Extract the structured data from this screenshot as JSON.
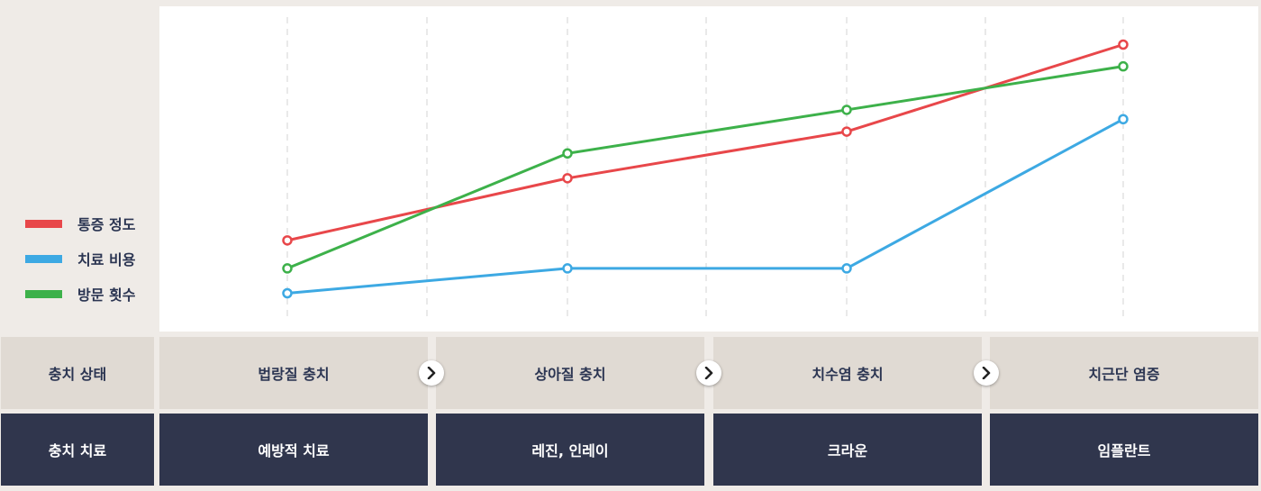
{
  "legend": [
    {
      "label": "통증 정도",
      "color": "#e8474a"
    },
    {
      "label": "치료 비용",
      "color": "#3da9e3"
    },
    {
      "label": "방문 횟수",
      "color": "#3db14a"
    }
  ],
  "table": {
    "stage_header": "충치 상태",
    "treatment_header": "충치 치료",
    "stages": [
      "법랑질 충치",
      "상아질 충치",
      "치수염 충치",
      "치근단 염증"
    ],
    "treatments": [
      "예방적 치료",
      "레진, 인레이",
      "크라운",
      "임플란트"
    ]
  },
  "chart_data": {
    "type": "line",
    "categories": [
      "법랑질 충치",
      "상아질 충치",
      "치수염 충치",
      "치근단 염증"
    ],
    "ylim": [
      0,
      100
    ],
    "grid": "vertical dashed",
    "legend_position": "left",
    "series": [
      {
        "name": "통증 정도",
        "color": "#e8474a",
        "values": [
          27,
          47,
          62,
          90
        ]
      },
      {
        "name": "치료 비용",
        "color": "#3da9e3",
        "values": [
          10,
          18,
          18,
          66
        ]
      },
      {
        "name": "방문 횟수",
        "color": "#3db14a",
        "values": [
          18,
          55,
          69,
          83
        ]
      }
    ]
  }
}
